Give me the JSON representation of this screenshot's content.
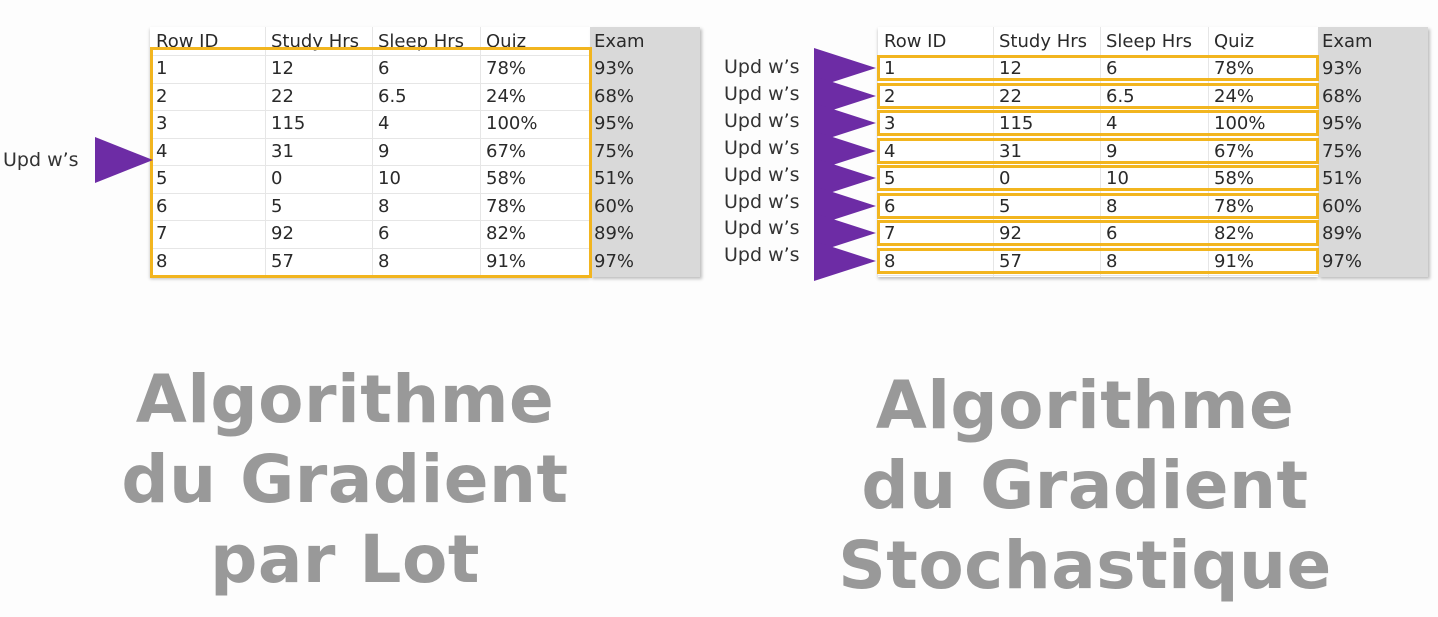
{
  "columns": [
    "Row ID",
    "Study Hrs",
    "Sleep Hrs",
    "Quiz",
    "Exam"
  ],
  "rows": [
    [
      "1",
      "12",
      "6",
      "78%",
      "93%"
    ],
    [
      "2",
      "22",
      "6.5",
      "24%",
      "68%"
    ],
    [
      "3",
      "115",
      "4",
      "100%",
      "95%"
    ],
    [
      "4",
      "31",
      "9",
      "67%",
      "75%"
    ],
    [
      "5",
      "0",
      "10",
      "58%",
      "51%"
    ],
    [
      "6",
      "5",
      "8",
      "78%",
      "60%"
    ],
    [
      "7",
      "92",
      "6",
      "82%",
      "89%"
    ],
    [
      "8",
      "57",
      "8",
      "91%",
      "97%"
    ]
  ],
  "update_label": "Upd w’s",
  "batch": {
    "title_lines": [
      "Algorithme",
      "du Gradient",
      "par Lot"
    ],
    "arrow_row": 3
  },
  "stochastic": {
    "title_lines": [
      "Algorithme",
      "du Gradient",
      "Stochastique"
    ]
  },
  "colors": {
    "arrow": "#6d2ca5",
    "highlight": "#f2b51f",
    "title_text": "#999999",
    "exam_column": "#d9d9d9"
  }
}
